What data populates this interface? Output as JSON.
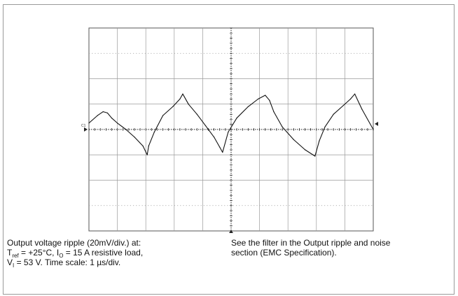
{
  "chart_data": {
    "type": "line",
    "title": "",
    "xlabel": "",
    "ylabel": "",
    "channel_label": "C1",
    "x_unit": "µs",
    "y_unit": "mV",
    "x_per_div": 1,
    "y_per_div": 20,
    "xlim": [
      0,
      10
    ],
    "ylim": [
      -80,
      80
    ],
    "x_divisions": 10,
    "y_divisions": 8,
    "grid": true,
    "series": [
      {
        "name": "",
        "x": [
          0.0,
          0.3,
          0.5,
          0.65,
          0.8,
          1.0,
          1.3,
          1.6,
          1.9,
          2.05,
          2.1,
          2.3,
          2.6,
          2.95,
          3.2,
          3.3,
          3.5,
          3.8,
          4.1,
          4.4,
          4.6,
          4.7,
          4.9,
          5.2,
          5.6,
          5.95,
          6.2,
          6.35,
          6.5,
          6.8,
          7.2,
          7.6,
          7.95,
          8.1,
          8.3,
          8.6,
          8.95,
          9.2,
          9.35,
          9.6,
          10.0
        ],
        "y": [
          5,
          11,
          14,
          13,
          9,
          5,
          0,
          -6,
          -13,
          -20,
          -13,
          -2,
          11,
          18,
          24,
          28,
          20,
          12,
          3,
          -6,
          -14,
          -18,
          -2,
          9,
          18,
          24,
          27,
          23,
          14,
          2,
          -8,
          -16,
          -21,
          -9,
          2,
          12,
          19,
          24,
          28,
          16,
          0
        ],
        "color": "#111111"
      }
    ]
  },
  "captions": {
    "left": {
      "line1": "Output voltage ripple (20mV/div.) at:",
      "t_symbol": "T",
      "t_sub": "ref",
      "t_value": " = +25°C, ",
      "i_symbol": "I",
      "i_sub": "O",
      "i_value": " = 15 A resistive load,",
      "v_symbol": "V",
      "v_sub": "I",
      "v_value": " = 53 V. Time scale: 1 µs/div."
    },
    "right": {
      "line1": "See the filter in the Output ripple and noise",
      "line2": "section (EMC Specification)."
    }
  }
}
